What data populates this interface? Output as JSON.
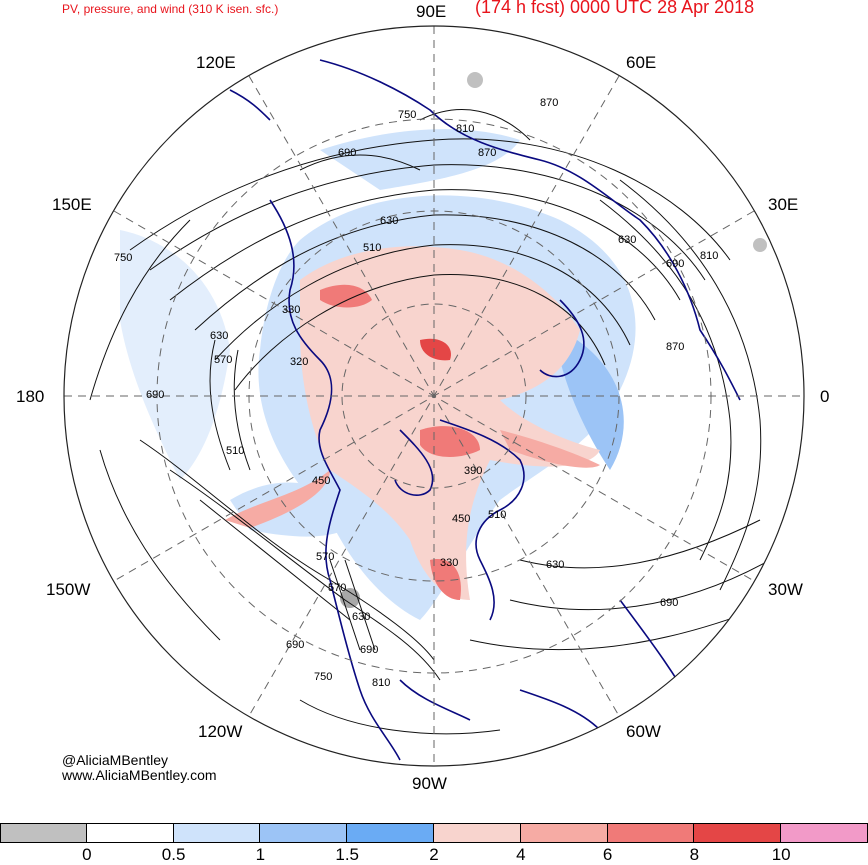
{
  "title": {
    "left": "PV, pressure, and wind (310 K isen. sfc.)",
    "right": "(174 h fcst) 0000 UTC 28 Apr 2018"
  },
  "longitude_labels": {
    "top": "90E",
    "top_right": "60E",
    "upper_right": "30E",
    "right": "0",
    "lower_right": "30W",
    "bottom_right": "60W",
    "bottom": "90W",
    "bottom_left": "120W",
    "lower_left": "150W",
    "left": "180",
    "upper_left": "150E",
    "top_left": "120E"
  },
  "contour_labels": [
    "750",
    "810",
    "690",
    "870",
    "870",
    "630",
    "510",
    "750",
    "630",
    "690",
    "810",
    "330",
    "630",
    "570",
    "320",
    "690",
    "870",
    "510",
    "450",
    "390",
    "510",
    "570",
    "450",
    "330",
    "630",
    "570",
    "630",
    "690",
    "690",
    "690",
    "750",
    "810"
  ],
  "credits": {
    "handle": "@AliciaMBentley",
    "website": "www.AliciaMBentley.com"
  },
  "colorbar": {
    "colors": [
      "#c0c0c0",
      "#ffffff",
      "#cfe3fb",
      "#9cc4f6",
      "#6aabf4",
      "#f8d4ce",
      "#f6aba4",
      "#f07a78",
      "#e44646",
      "#f29ac8"
    ],
    "ticks": [
      "0",
      "0.5",
      "1",
      "1.5",
      "2",
      "4",
      "6",
      "8",
      "10"
    ]
  },
  "map_style": {
    "coastline_color": "#0a0a80",
    "contour_color": "#111111",
    "grid_color": "#666666"
  }
}
